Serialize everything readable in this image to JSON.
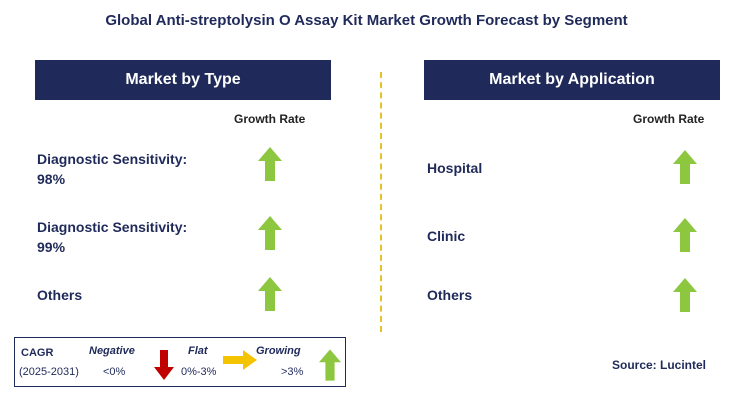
{
  "title": "Global Anti-streptolysin O Assay Kit Market Growth Forecast by Segment",
  "left_panel": {
    "header": "Market by Type",
    "growth_label": "Growth Rate",
    "rows": [
      {
        "label_line1": "Diagnostic Sensitivity:",
        "label_line2": "98%",
        "arrow": "up-green-arrow-icon"
      },
      {
        "label_line1": "Diagnostic Sensitivity:",
        "label_line2": "99%",
        "arrow": "up-green-arrow-icon"
      },
      {
        "label_line1": "Others",
        "label_line2": "",
        "arrow": "up-green-arrow-icon"
      }
    ]
  },
  "right_panel": {
    "header": "Market by Application",
    "growth_label": "Growth Rate",
    "rows": [
      {
        "label": "Hospital",
        "arrow": "up-green-arrow-icon"
      },
      {
        "label": "Clinic",
        "arrow": "up-green-arrow-icon"
      },
      {
        "label": "Others",
        "arrow": "up-green-arrow-icon"
      }
    ]
  },
  "legend": {
    "cagr": "CAGR",
    "period": "(2025-2031)",
    "negative": "Negative",
    "negative_range": "<0%",
    "flat": "Flat",
    "flat_range": "0%-3%",
    "growing": "Growing",
    "growing_range": ">3%"
  },
  "source": "Source: Lucintel",
  "colors": {
    "navy": "#1f2a5a",
    "green_arrow": "#8dc63f",
    "red_arrow": "#c00000",
    "yellow_arrow": "#f5c400",
    "divider": "#e6c229"
  }
}
